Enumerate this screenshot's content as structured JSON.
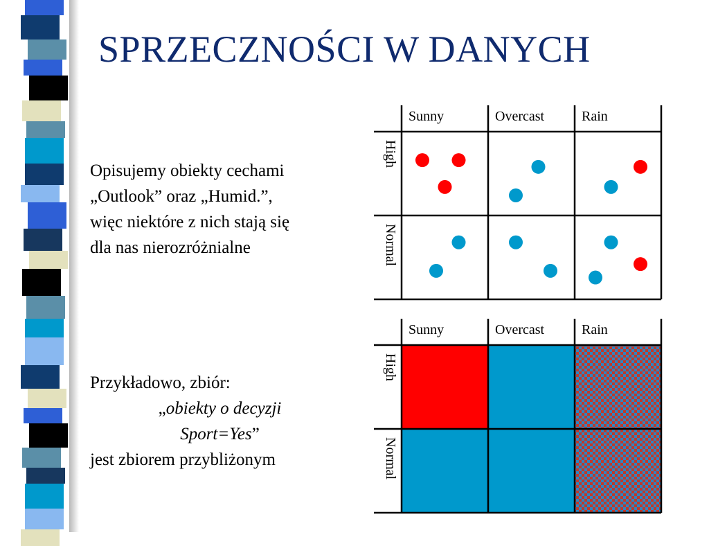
{
  "title": "SPRZECZNOŚCI W DANYCH",
  "paragraph1": {
    "lines": [
      "Opisujemy obiekty cechami",
      "„Outlook” oraz „Humid.”,",
      "więc niektóre z nich stają się",
      "dla nas nierozróżnialne"
    ]
  },
  "paragraph2": {
    "line1": "Przykładowo, zbiór:",
    "line2_prefix": "„",
    "line2_italic": "obiekty o decyzji",
    "line3_italic": "Sport=Yes",
    "line3_suffix": "”",
    "line4": "jest zbiorem przybliżonym"
  },
  "grid": {
    "columns": [
      "Sunny",
      "Overcast",
      "Rain"
    ],
    "rows": [
      "High",
      "Normal"
    ]
  },
  "scatter_points": [
    {
      "outlook": "Sunny",
      "humidity": "High",
      "decision": "no"
    },
    {
      "outlook": "Sunny",
      "humidity": "High",
      "decision": "no"
    },
    {
      "outlook": "Sunny",
      "humidity": "High",
      "decision": "no"
    },
    {
      "outlook": "Overcast",
      "humidity": "High",
      "decision": "yes"
    },
    {
      "outlook": "Overcast",
      "humidity": "High",
      "decision": "yes"
    },
    {
      "outlook": "Rain",
      "humidity": "High",
      "decision": "no"
    },
    {
      "outlook": "Rain",
      "humidity": "High",
      "decision": "yes"
    },
    {
      "outlook": "Sunny",
      "humidity": "Normal",
      "decision": "yes"
    },
    {
      "outlook": "Sunny",
      "humidity": "Normal",
      "decision": "yes"
    },
    {
      "outlook": "Overcast",
      "humidity": "Normal",
      "decision": "yes"
    },
    {
      "outlook": "Overcast",
      "humidity": "Normal",
      "decision": "yes"
    },
    {
      "outlook": "Rain",
      "humidity": "Normal",
      "decision": "yes"
    },
    {
      "outlook": "Rain",
      "humidity": "Normal",
      "decision": "no"
    },
    {
      "outlook": "Rain",
      "humidity": "Normal",
      "decision": "yes"
    }
  ],
  "region_cells": [
    {
      "outlook": "Sunny",
      "humidity": "High",
      "fill": "red"
    },
    {
      "outlook": "Overcast",
      "humidity": "High",
      "fill": "blue"
    },
    {
      "outlook": "Rain",
      "humidity": "High",
      "fill": "checkered"
    },
    {
      "outlook": "Sunny",
      "humidity": "Normal",
      "fill": "blue"
    },
    {
      "outlook": "Overcast",
      "humidity": "Normal",
      "fill": "blue"
    },
    {
      "outlook": "Rain",
      "humidity": "Normal",
      "fill": "checkered"
    }
  ],
  "colors": {
    "title": "#0f2a6e",
    "red": "#ff0000",
    "blue": "#0099cc",
    "stripe_palette": [
      "#2e5fd6",
      "#0f3b6e",
      "#5b8fa8",
      "#0099cc",
      "#e3e1bd",
      "#000000",
      "#89b8f0",
      "#17375e"
    ]
  }
}
